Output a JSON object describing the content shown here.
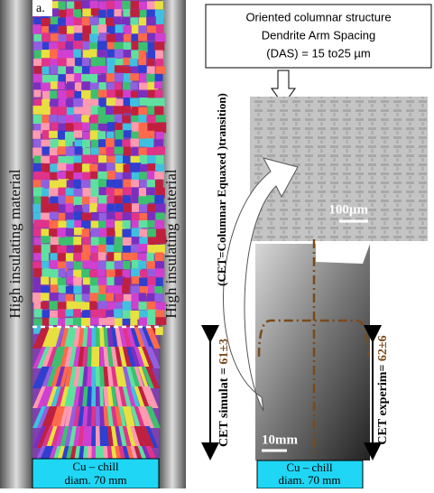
{
  "panel_label": "a.",
  "left": {
    "insulation_left": "High insulating material",
    "insulation_right": "High insulating material",
    "chill": [
      "Cu – chill",
      "diam. 70 mm"
    ]
  },
  "right": {
    "info_box": [
      "Oriented columnar structure",
      "Dendrite Arm Spacing",
      "(DAS) = 15 to25 µm"
    ],
    "scale_micro": "100µm",
    "scale_macro": "10mm",
    "cet_note": "(CET=Columnar Equaxed )transition)",
    "cet_simulated": {
      "label": "CET simulat = ",
      "value": "61±3"
    },
    "cet_experimental": {
      "label": "CET experim= ",
      "value": "62±6"
    },
    "chill": [
      "Cu – chill",
      "diam. 70 mm"
    ]
  }
}
